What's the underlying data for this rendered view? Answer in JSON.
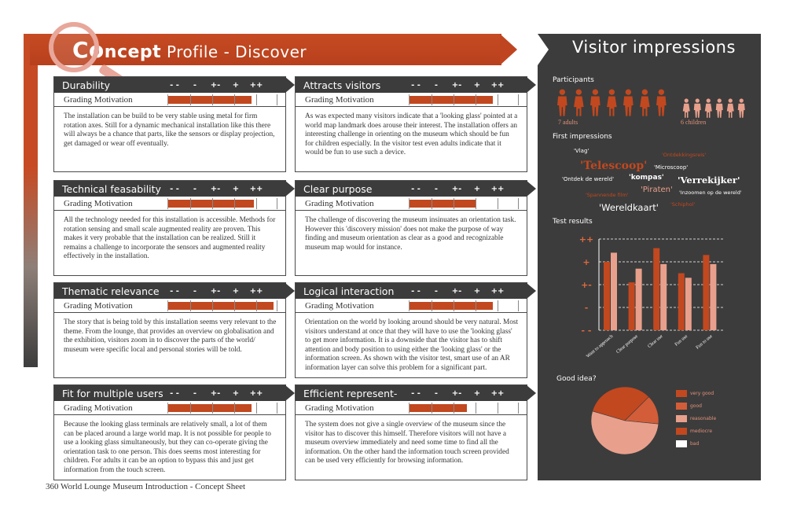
{
  "header": {
    "title_initial": "Co",
    "title_bold": "ncept",
    "title_rest": "Profile - Discover"
  },
  "scale_labels": [
    "- -",
    "-",
    "+-",
    "+",
    "++"
  ],
  "grading_label": "Grading Motivation",
  "cards": [
    {
      "title": "Durability",
      "score": 0.76,
      "text": "The installation can be build to be very stable using metal for firm rotation axes. Still for a dynamic mechanical installation like this there will always be a chance that parts, like the sensors or display projection, get damaged or wear off eventually."
    },
    {
      "title": "Attracts visitors",
      "score": 0.76,
      "text": "As was expected many visitors indicate that a 'looking glass' pointed at a world map landmark does arouse their interest. The installation offers an interesting challenge in orienting on the museum which should be fun for children especially. In the visitor test even adults indicate that it would be fun to use such a device."
    },
    {
      "title": "Technical feasability",
      "score": 0.78,
      "text": "All the technology needed for this installation is accessible. Methods for rotation sensing and small scale augmented reality are proven. This makes it very probable that the installation can be realized. Still it remains a challenge to incorporate the sensors and augmented reality effectively in the installation."
    },
    {
      "title": "Clear purpose",
      "score": 0.6,
      "text": "The challenge of discovering the museum insinuates an orientation task. However this 'discovery mission' does not make the purpose of way finding and museum orientation as clear as a good and recognizable museum map would for instance."
    },
    {
      "title": "Thematic relevance",
      "score": 0.96,
      "text": "The story that is being told by this installation seems very relevant to the theme. From the lounge, that provides an overview on globalisation and the exhibition, visitors zoom in to discover the parts of the world/ museum were specific local and personal stories will be told."
    },
    {
      "title": "Logical interaction",
      "score": 0.76,
      "text": "Orientation on the world by looking around should be very natural. Most visitors understand at once that they will have to use the 'looking glass' to get more information. It is a downside that the visitor has to shift attention and body position to using either the 'looking glass' or the information screen. As shown with the visitor test, smart use of an AR information layer can solve this problem for a significant part."
    },
    {
      "title": "Fit for multiple users",
      "score": 0.76,
      "text": "Because the looking glass terminals are relatively small, a lot of them can be placed around a large world map. It is not possible for people to use a looking glass simultaneously, but they can co-operate giving the orientation task to one person. This does seems most interesting for children. For adults it can be an option to bypass this and just get information from the touch screen."
    },
    {
      "title": "Efficient represent-",
      "score": 0.52,
      "text": "The system does not give a single overview of the museum since the visitor has to discover this himself. Therefore visitors will not have a museum overview immediately and need some time to find all the information. On the other hand the information touch screen provided can be used very efficiently for browsing information."
    }
  ],
  "footer": "360 World Lounge Museum Introduction - Concept Sheet",
  "panel": {
    "title": "Visitor impressions",
    "participants_label": "Participants",
    "adults_label": "7 adults",
    "children_label": "6 children",
    "adults_count": 7,
    "children_count": 6,
    "first_impressions_label": "First impressions",
    "test_results_label": "Test results",
    "good_idea_label": "Good idea?",
    "colors": {
      "accent": "#c2481f",
      "light": "#e8a08c",
      "panel": "#3c3c3c"
    }
  },
  "words": [
    {
      "text": "'Vlag'",
      "size": 7,
      "color": "#ffffff",
      "weight": "normal"
    },
    {
      "text": "'Ontdekkingsreis'",
      "size": 6.5,
      "color": "#c2481f",
      "weight": "normal"
    },
    {
      "text": "'Telescoop'",
      "size": 14,
      "color": "#c2481f",
      "weight": "bold"
    },
    {
      "text": "'Microscoop'",
      "size": 7,
      "color": "#ffffff",
      "weight": "normal"
    },
    {
      "text": "'Ontdek de wereld'",
      "size": 7,
      "color": "#ffffff",
      "weight": "normal"
    },
    {
      "text": "'kompas'",
      "size": 9,
      "color": "#ffffff",
      "weight": "bold"
    },
    {
      "text": "'Verrekijker'",
      "size": 11.5,
      "color": "#ffffff",
      "weight": "bold"
    },
    {
      "text": "'Spannende film'",
      "size": 6.5,
      "color": "#c2481f",
      "weight": "normal"
    },
    {
      "text": "'Piraten'",
      "size": 10,
      "color": "#e8a08c",
      "weight": "normal"
    },
    {
      "text": "'Inzoomen op de wereld'",
      "size": 6.5,
      "color": "#ffffff",
      "weight": "normal"
    },
    {
      "text": "'Schiphol'",
      "size": 6.5,
      "color": "#c2481f",
      "weight": "normal"
    },
    {
      "text": "'Wereldkaart'",
      "size": 11.5,
      "color": "#ffffff",
      "weight": "normal"
    }
  ],
  "chart_data": [
    {
      "type": "bar",
      "title": "Test results",
      "categories": [
        "Want to approach",
        "Clear purpose",
        "Clear use",
        "Fun use",
        "Fun to use"
      ],
      "series": [
        {
          "color": "#c2481f",
          "values": [
            1.0,
            0.1,
            1.6,
            0.5,
            1.3
          ]
        },
        {
          "color": "#e8a08c",
          "values": [
            1.4,
            0.7,
            0.9,
            0.3,
            0.9
          ]
        }
      ],
      "yticks": [
        "++",
        "+",
        "+-",
        "-",
        "- -"
      ],
      "ylim": [
        -2,
        2
      ]
    },
    {
      "type": "pie",
      "title": "Good idea?",
      "labels": [
        "very good",
        "good",
        "reasonable",
        "mediocre",
        "bad"
      ],
      "values": [
        33,
        14,
        53,
        0,
        0
      ],
      "colors": [
        "#c2481f",
        "#d25d38",
        "#e8a08c",
        "#c2481f",
        "#ffffff"
      ]
    }
  ]
}
